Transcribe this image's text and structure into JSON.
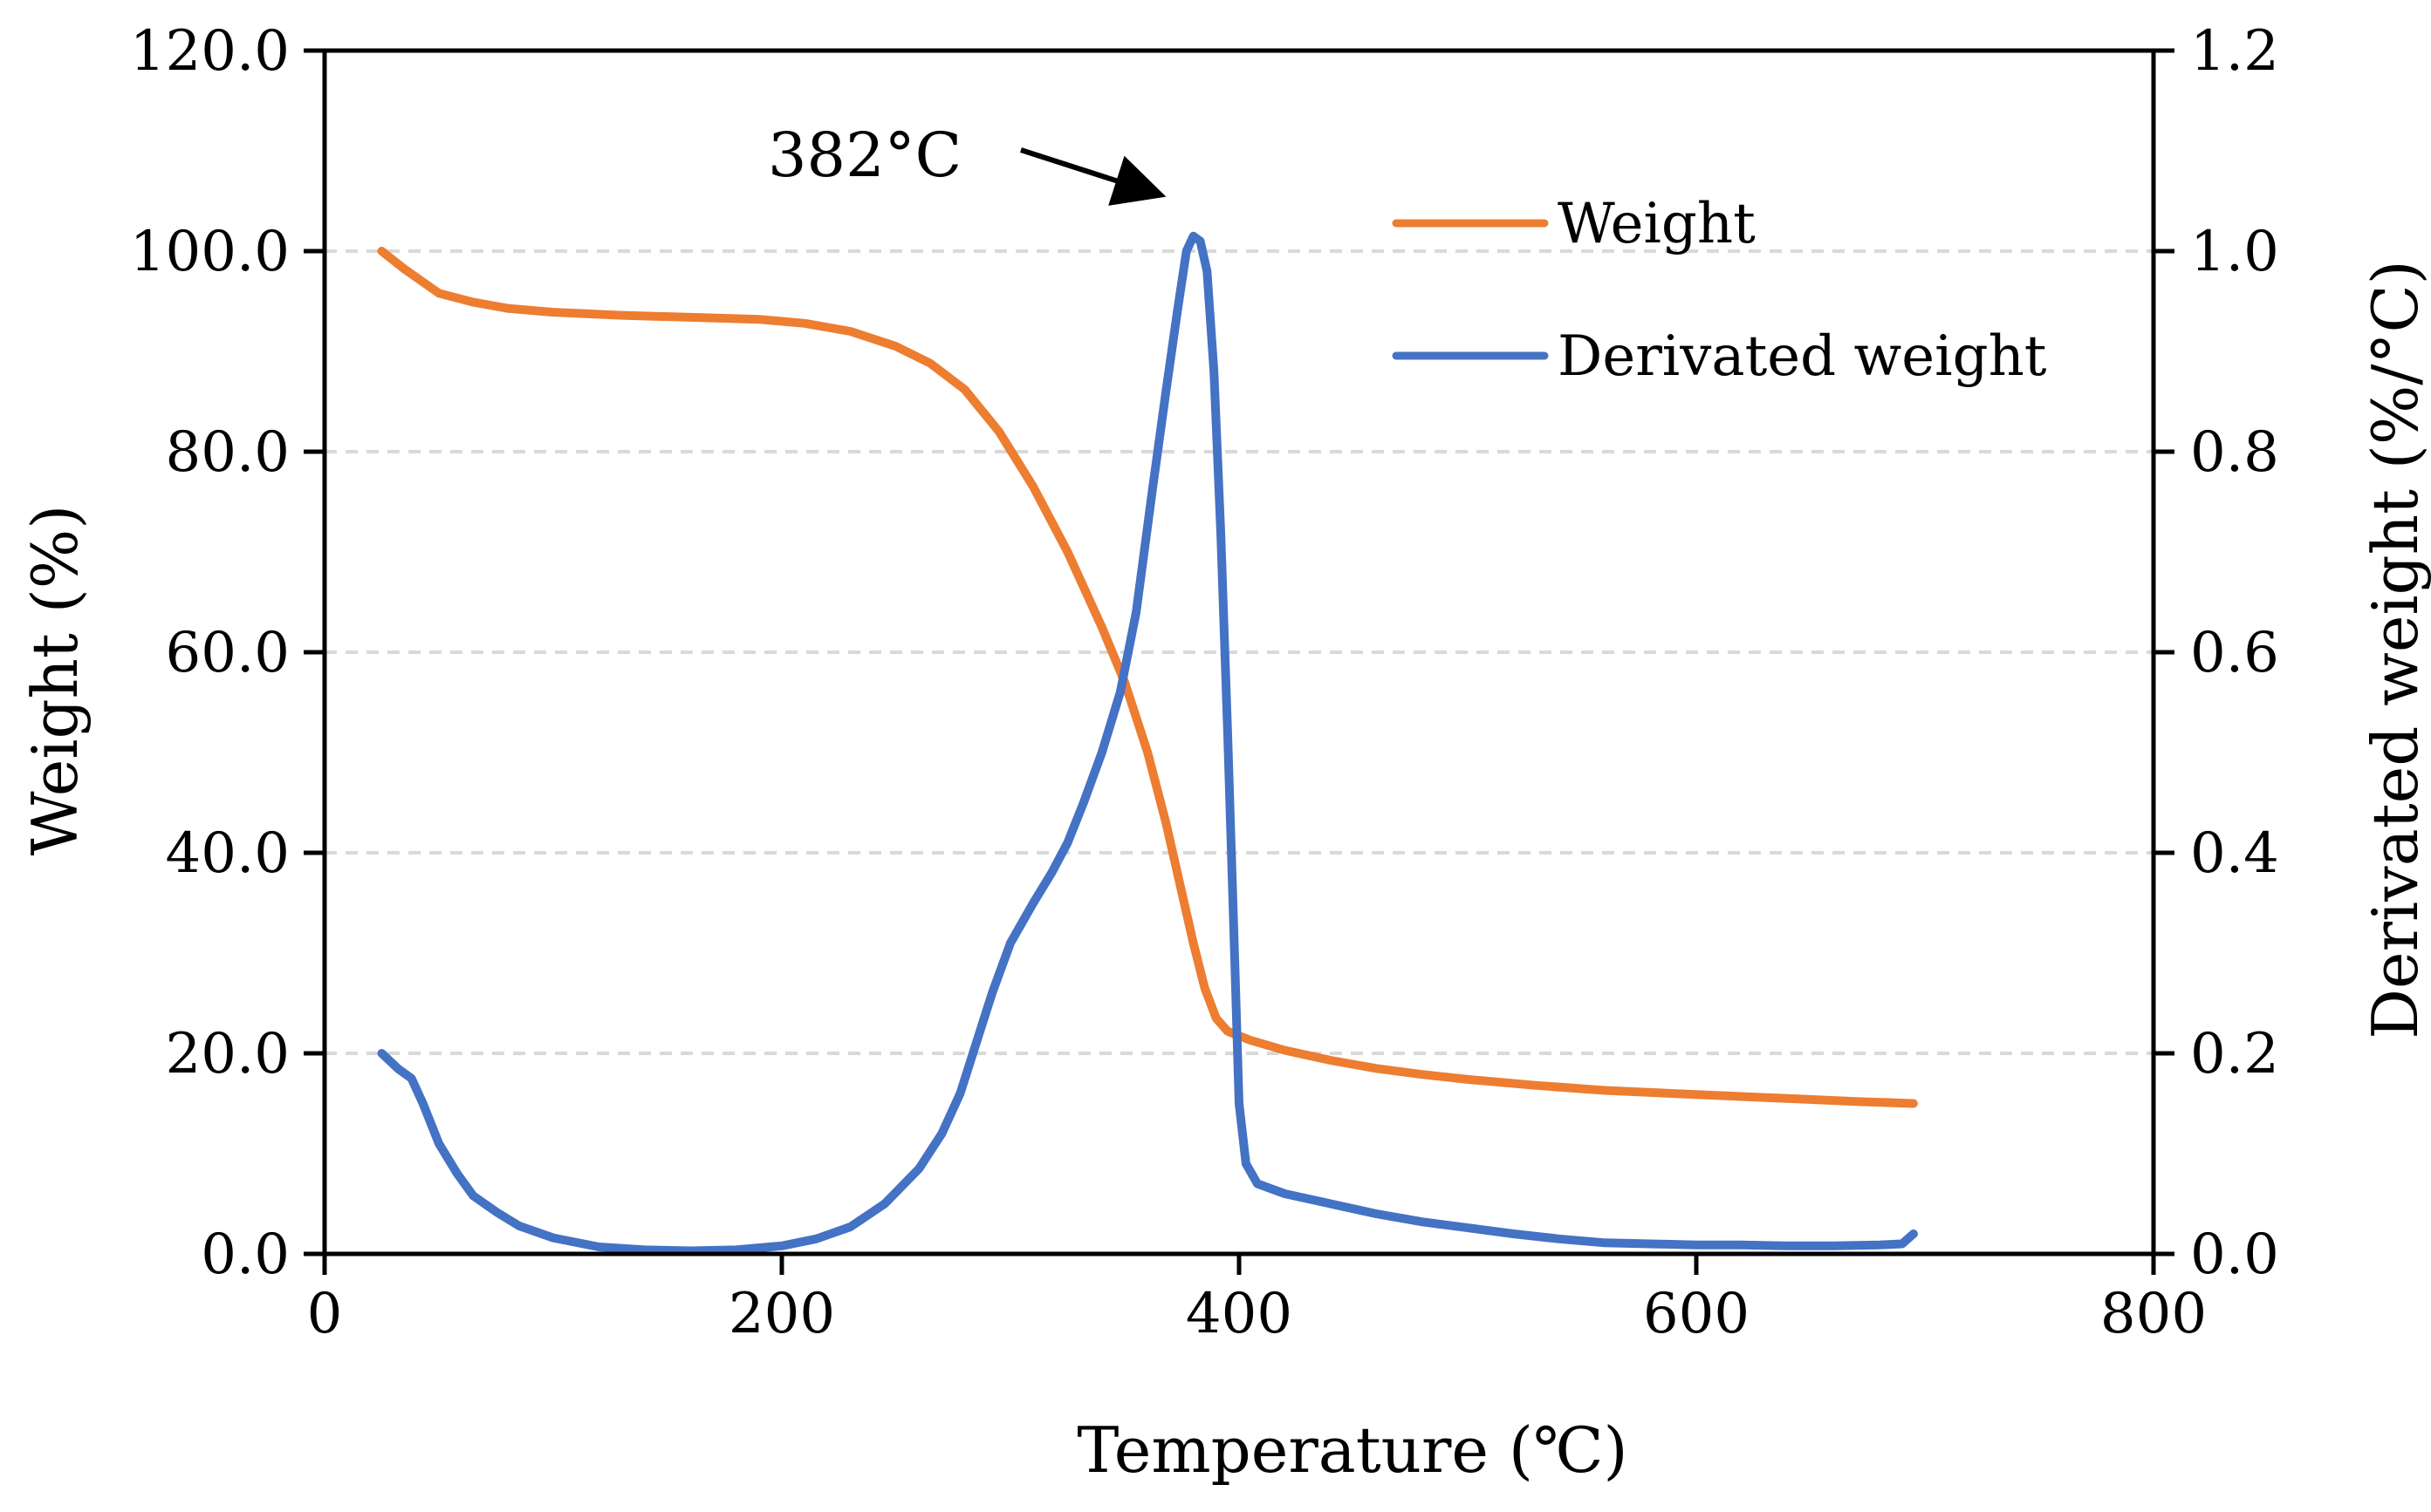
{
  "chart_data": {
    "type": "line",
    "xlabel": "Temperature (℃)",
    "ylabel_left": "Weight (%)",
    "ylabel_right": "Derivated weight (%/°C)",
    "xlim": [
      0,
      800
    ],
    "ylim_left": [
      0,
      120
    ],
    "ylim_right": [
      0,
      1.2
    ],
    "x_ticks": [
      "0",
      "200",
      "400",
      "600",
      "800"
    ],
    "y_left_ticks": [
      "0.0",
      "20.0",
      "40.0",
      "60.0",
      "80.0",
      "100.0",
      "120.0"
    ],
    "y_right_ticks": [
      "0.0",
      "0.2",
      "0.4",
      "0.6",
      "0.8",
      "1.0",
      "1.2"
    ],
    "grid": "horizontal dashed",
    "legend_position": "top-right",
    "annotation": {
      "text": "382°C",
      "x": 382,
      "y_right": 1.0
    },
    "series": [
      {
        "name": "Weight",
        "axis": "left",
        "color": "#ED7D31",
        "points": [
          [
            25,
            100.0
          ],
          [
            35,
            98.2
          ],
          [
            50,
            95.8
          ],
          [
            65,
            94.9
          ],
          [
            80,
            94.3
          ],
          [
            100,
            93.9
          ],
          [
            130,
            93.6
          ],
          [
            160,
            93.4
          ],
          [
            190,
            93.2
          ],
          [
            210,
            92.8
          ],
          [
            230,
            92.0
          ],
          [
            250,
            90.5
          ],
          [
            265,
            88.8
          ],
          [
            280,
            86.2
          ],
          [
            295,
            82.0
          ],
          [
            310,
            76.5
          ],
          [
            325,
            70.0
          ],
          [
            340,
            62.5
          ],
          [
            350,
            57.0
          ],
          [
            360,
            50.0
          ],
          [
            368,
            43.0
          ],
          [
            375,
            36.0
          ],
          [
            380,
            31.0
          ],
          [
            385,
            26.5
          ],
          [
            390,
            23.5
          ],
          [
            395,
            22.2
          ],
          [
            405,
            21.3
          ],
          [
            420,
            20.3
          ],
          [
            440,
            19.3
          ],
          [
            460,
            18.5
          ],
          [
            480,
            17.9
          ],
          [
            500,
            17.4
          ],
          [
            530,
            16.8
          ],
          [
            560,
            16.3
          ],
          [
            600,
            15.9
          ],
          [
            640,
            15.5
          ],
          [
            670,
            15.2
          ],
          [
            695,
            15.0
          ]
        ]
      },
      {
        "name": "Derivated weight",
        "axis": "right",
        "color": "#4472C4",
        "points": [
          [
            25,
            0.2
          ],
          [
            32,
            0.185
          ],
          [
            38,
            0.175
          ],
          [
            43,
            0.15
          ],
          [
            50,
            0.11
          ],
          [
            58,
            0.08
          ],
          [
            65,
            0.058
          ],
          [
            75,
            0.042
          ],
          [
            85,
            0.028
          ],
          [
            100,
            0.016
          ],
          [
            120,
            0.007
          ],
          [
            140,
            0.004
          ],
          [
            160,
            0.003
          ],
          [
            180,
            0.004
          ],
          [
            200,
            0.008
          ],
          [
            215,
            0.015
          ],
          [
            230,
            0.027
          ],
          [
            245,
            0.05
          ],
          [
            260,
            0.085
          ],
          [
            270,
            0.12
          ],
          [
            278,
            0.16
          ],
          [
            285,
            0.21
          ],
          [
            292,
            0.26
          ],
          [
            300,
            0.31
          ],
          [
            310,
            0.35
          ],
          [
            318,
            0.38
          ],
          [
            325,
            0.41
          ],
          [
            332,
            0.45
          ],
          [
            340,
            0.5
          ],
          [
            348,
            0.56
          ],
          [
            355,
            0.64
          ],
          [
            362,
            0.76
          ],
          [
            368,
            0.86
          ],
          [
            373,
            0.94
          ],
          [
            377,
            1.0
          ],
          [
            380,
            1.015
          ],
          [
            383,
            1.01
          ],
          [
            386,
            0.98
          ],
          [
            389,
            0.88
          ],
          [
            392,
            0.72
          ],
          [
            395,
            0.52
          ],
          [
            398,
            0.3
          ],
          [
            400,
            0.15
          ],
          [
            403,
            0.09
          ],
          [
            408,
            0.07
          ],
          [
            420,
            0.06
          ],
          [
            440,
            0.05
          ],
          [
            460,
            0.04
          ],
          [
            480,
            0.032
          ],
          [
            500,
            0.026
          ],
          [
            520,
            0.02
          ],
          [
            540,
            0.015
          ],
          [
            560,
            0.011
          ],
          [
            580,
            0.01
          ],
          [
            600,
            0.009
          ],
          [
            620,
            0.009
          ],
          [
            640,
            0.008
          ],
          [
            660,
            0.008
          ],
          [
            680,
            0.009
          ],
          [
            690,
            0.01
          ],
          [
            695,
            0.02
          ]
        ]
      }
    ]
  }
}
